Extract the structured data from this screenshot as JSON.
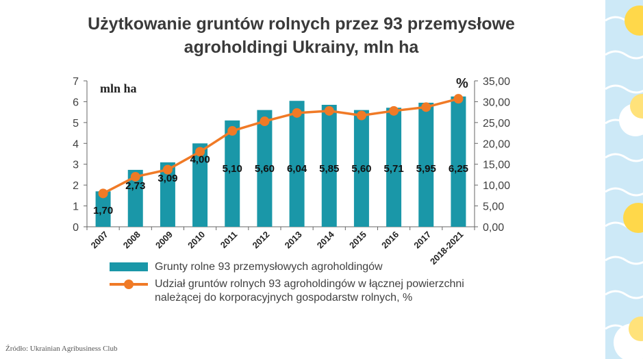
{
  "title": {
    "line1": "Użytkowanie gruntów rolnych przez 93 przemysłowe",
    "line2": "agroholdingi Ukrainy, mln ha"
  },
  "source": "Źródło: Ukrainian Agribusiness Club",
  "colors": {
    "bar": "#1a97a8",
    "line": "#f07a26",
    "text": "#3a3a3a",
    "axis": "#555555"
  },
  "chart_data": {
    "type": "bar",
    "categories": [
      "2007",
      "2008",
      "2009",
      "2010",
      "2011",
      "2012",
      "2013",
      "2014",
      "2015",
      "2016",
      "2017",
      "2018-2021"
    ],
    "series": [
      {
        "name": "Grunty rolne 93 przemysłowych agroholdingów",
        "type": "bar",
        "axis": "left",
        "values": [
          1.7,
          2.73,
          3.09,
          4.0,
          5.1,
          5.6,
          6.04,
          5.85,
          5.6,
          5.71,
          5.95,
          6.25
        ],
        "labels": [
          "1,70",
          "2,73",
          "3,09",
          "4,00",
          "5,10",
          "5,60",
          "6,04",
          "5,85",
          "5,60",
          "5,71",
          "5,95",
          "6,25"
        ]
      },
      {
        "name_line1": "Udział gruntów rolnych 93 agroholdingów w łącznej powierzchni",
        "name_line2": "należącej do korporacyjnych gospodarstw rolnych, %",
        "type": "line",
        "axis": "right",
        "values": [
          8.0,
          12.0,
          13.7,
          18.0,
          23.0,
          25.3,
          27.3,
          27.8,
          26.7,
          27.8,
          28.7,
          30.7
        ]
      }
    ],
    "y_left": {
      "label": "mln ha",
      "ylim": [
        0,
        7
      ],
      "ticks": [
        "0",
        "1",
        "2",
        "3",
        "4",
        "5",
        "6",
        "7"
      ]
    },
    "y_right": {
      "label": "%",
      "ylim": [
        0,
        35
      ],
      "ticks": [
        "0,00",
        "5,00",
        "10,00",
        "15,00",
        "20,00",
        "25,00",
        "30,00",
        "35,00"
      ]
    },
    "legend_position": "bottom"
  }
}
